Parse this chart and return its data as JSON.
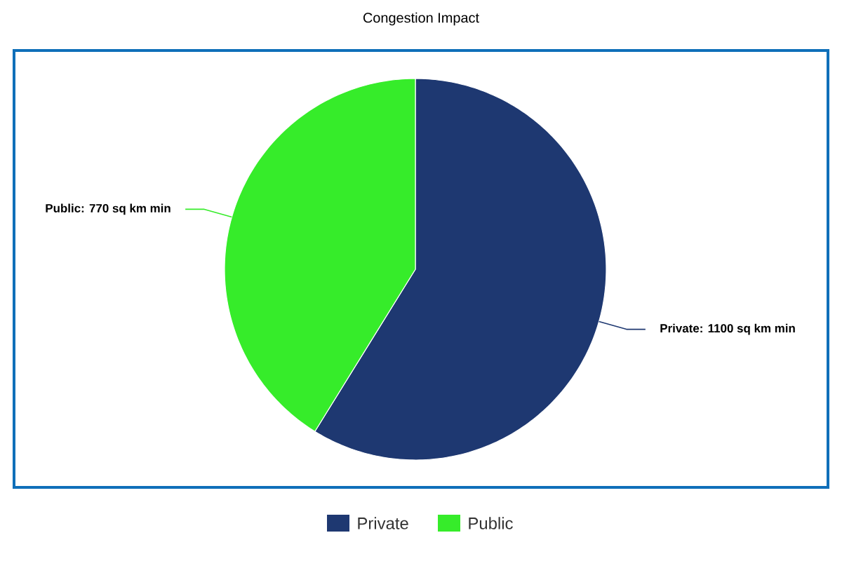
{
  "chart_data": {
    "type": "pie",
    "title": "Congestion Impact",
    "categories": [
      "Private",
      "Public"
    ],
    "values": [
      1100,
      770
    ],
    "colors": [
      "#1e3871",
      "#36ec2a"
    ],
    "value_labels": [
      "Private: 1100 sq km min",
      "Public: 770 sq km min"
    ],
    "legend": "bottom"
  }
}
